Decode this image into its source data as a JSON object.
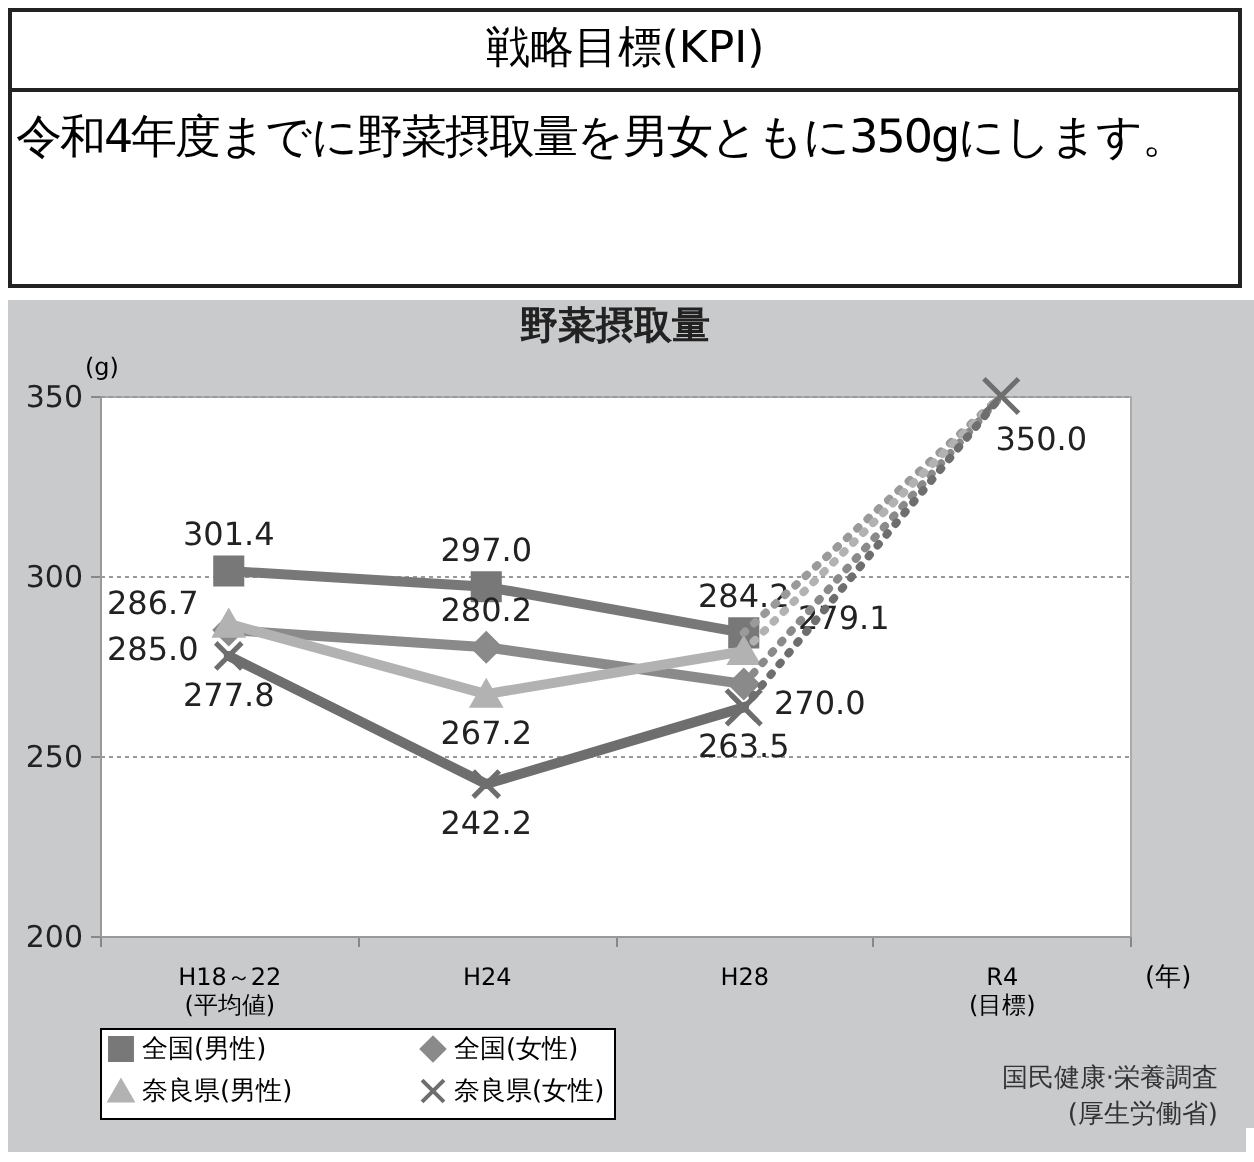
{
  "chart_data": {
    "type": "line",
    "title": "野菜摂取量",
    "ylabel": "(g)",
    "xlabel": "(年)",
    "annotations": [
      "戦略目標(KPI)",
      "令和4年度までに野菜摂取量を男女ともに350gにします。",
      "国民健康·栄養調査\n(厚生労働省)"
    ],
    "categories": [
      "H18～22\n(平均値)",
      "H24",
      "H28",
      "R4\n(目標)"
    ],
    "ylim": [
      200,
      350
    ],
    "yticks": [
      200,
      250,
      300,
      350
    ],
    "grid": "y",
    "legend": "bottom",
    "series": [
      {
        "name": "全国(男性)",
        "color": "#787878",
        "marker": "square",
        "values": [
          301.4,
          297.0,
          284.2,
          null
        ],
        "value_labels": [
          "301.4",
          "297.0",
          "284.2",
          null
        ]
      },
      {
        "name": "全国(女性)",
        "color": "#8a8a8a",
        "marker": "diamond",
        "values": [
          285.0,
          280.2,
          270.0,
          null
        ],
        "value_labels": [
          "285.0",
          "280.2",
          "270.0",
          null
        ]
      },
      {
        "name": "奈良県(男性)",
        "color": "#b2b2b2",
        "marker": "triangle",
        "values": [
          286.7,
          267.2,
          279.1,
          null
        ],
        "value_labels": [
          "286.7",
          "267.2",
          "279.1",
          null
        ]
      },
      {
        "name": "奈良県(女性)",
        "color": "#6e6e6e",
        "marker": "cross",
        "values": [
          277.8,
          242.2,
          263.5,
          null
        ],
        "value_labels": [
          "277.8",
          "242.2",
          "263.5",
          null
        ]
      },
      {
        "color": "#9a9a9a",
        "line_style": "dotted",
        "values": [
          null,
          null,
          284.2,
          350.0
        ]
      },
      {
        "color": "#8a8a8a",
        "line_style": "dotted",
        "values": [
          null,
          null,
          270.0,
          350.0
        ]
      },
      {
        "color": "#b2b2b2",
        "line_style": "dotted",
        "values": [
          null,
          null,
          279.1,
          350.0
        ]
      },
      {
        "color": "#6e6e6e",
        "line_style": "dotted",
        "marker": "cross",
        "values": [
          null,
          null,
          263.5,
          350.0
        ],
        "value_labels": [
          null,
          null,
          null,
          "350.0"
        ]
      }
    ]
  }
}
